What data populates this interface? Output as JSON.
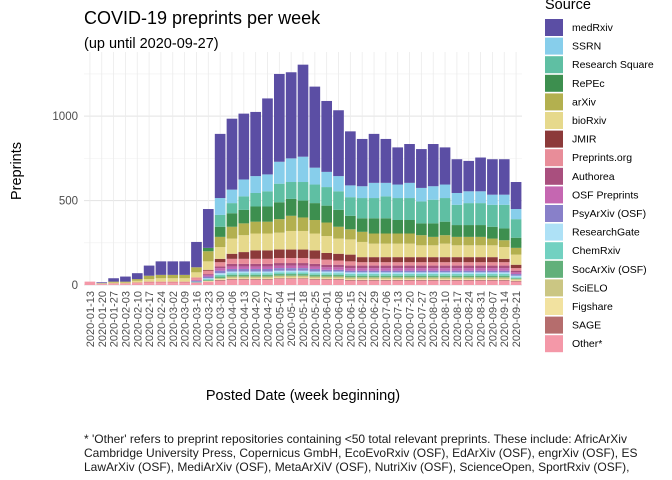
{
  "chart_data": {
    "type": "bar",
    "stacked": true,
    "title": "COVID-19 preprints per week",
    "subtitle": "(up until 2020-09-27)",
    "xlabel": "Posted Date (week beginning)",
    "ylabel": "Preprints",
    "ylim": [
      0,
      1380
    ],
    "yticks": [
      0,
      500,
      1000
    ],
    "grid": true,
    "legend_title": "Source",
    "legend_position": "right",
    "categories": [
      "2020-01-13",
      "2020-01-20",
      "2020-01-27",
      "2020-02-03",
      "2020-02-10",
      "2020-02-17",
      "2020-02-24",
      "2020-03-02",
      "2020-03-09",
      "2020-03-16",
      "2020-03-23",
      "2020-03-30",
      "2020-04-06",
      "2020-04-13",
      "2020-04-20",
      "2020-04-27",
      "2020-05-04",
      "2020-05-11",
      "2020-05-18",
      "2020-05-25",
      "2020-06-01",
      "2020-06-08",
      "2020-06-15",
      "2020-06-22",
      "2020-06-29",
      "2020-07-06",
      "2020-07-13",
      "2020-07-20",
      "2020-07-27",
      "2020-08-03",
      "2020-08-10",
      "2020-08-17",
      "2020-08-24",
      "2020-08-31",
      "2020-09-07",
      "2020-09-14",
      "2020-09-21"
    ],
    "xtick_labels": [
      "2020-01-13",
      "2020-01-20",
      "2020-01-27",
      "2020-02-03",
      "2020-02-10",
      "2020-02-17",
      "2020-02-24",
      "2020-03-02",
      "2020-03-09",
      "2020-03-16",
      "2020-03-23",
      "2020-03-30",
      "2020-04-06",
      "2020-04-13",
      "2020-04-20",
      "2020-04-27",
      "2020-05-04",
      "2020-05-11",
      "2020-05-18",
      "2020-05-25",
      "2020-06-01",
      "2020-06-08",
      "2020-06-15",
      "2020-06-22",
      "2020-06-29",
      "2020-07-06",
      "2020-07-13",
      "2020-07-20",
      "2020-07-27",
      "2020-08-03",
      "2020-08-10",
      "2020-08-17",
      "2020-08-24",
      "2020-08-31",
      "2020-09-07",
      "2020-09-14",
      "2020-09-21"
    ],
    "series": [
      {
        "name": "medRxiv",
        "color": "#5b4ea4",
        "values": [
          0,
          5,
          20,
          30,
          35,
          60,
          80,
          80,
          80,
          150,
          230,
          380,
          420,
          390,
          380,
          450,
          520,
          510,
          545,
          480,
          420,
          390,
          320,
          280,
          290,
          260,
          220,
          230,
          230,
          250,
          220,
          200,
          180,
          200,
          210,
          210,
          160
        ]
      },
      {
        "name": "SSRN",
        "color": "#87ceeb",
        "values": [
          0,
          0,
          0,
          0,
          0,
          0,
          0,
          0,
          0,
          0,
          0,
          100,
          80,
          100,
          100,
          100,
          130,
          140,
          150,
          100,
          90,
          90,
          70,
          70,
          90,
          80,
          80,
          90,
          80,
          80,
          80,
          70,
          70,
          70,
          60,
          60,
          60
        ]
      },
      {
        "name": "Research Square",
        "color": "#5fbfa3",
        "values": [
          0,
          0,
          0,
          0,
          0,
          0,
          0,
          0,
          0,
          0,
          0,
          70,
          60,
          80,
          80,
          90,
          110,
          100,
          110,
          110,
          110,
          110,
          110,
          120,
          120,
          130,
          130,
          130,
          130,
          140,
          140,
          120,
          130,
          130,
          130,
          140,
          110
        ]
      },
      {
        "name": "RePEc",
        "color": "#3d8f4f",
        "values": [
          0,
          0,
          0,
          0,
          0,
          0,
          0,
          0,
          0,
          0,
          20,
          60,
          80,
          80,
          90,
          90,
          100,
          100,
          100,
          100,
          100,
          100,
          80,
          80,
          90,
          90,
          80,
          80,
          70,
          80,
          80,
          70,
          70,
          70,
          70,
          70,
          60
        ]
      },
      {
        "name": "arXiv",
        "color": "#b3b04f",
        "values": [
          0,
          2,
          5,
          5,
          10,
          20,
          20,
          20,
          20,
          30,
          60,
          60,
          70,
          70,
          70,
          70,
          80,
          90,
          80,
          80,
          80,
          70,
          60,
          60,
          60,
          60,
          60,
          60,
          60,
          50,
          50,
          50,
          50,
          50,
          40,
          40,
          40
        ]
      },
      {
        "name": "bioRxiv",
        "color": "#e6d98c",
        "values": [
          0,
          2,
          5,
          5,
          10,
          15,
          20,
          20,
          20,
          30,
          50,
          70,
          90,
          100,
          100,
          100,
          100,
          110,
          110,
          100,
          100,
          90,
          90,
          90,
          80,
          80,
          80,
          80,
          70,
          70,
          80,
          70,
          70,
          70,
          70,
          70,
          60
        ]
      },
      {
        "name": "JMIR",
        "color": "#8c3a3a",
        "values": [
          0,
          0,
          0,
          0,
          0,
          0,
          0,
          0,
          0,
          0,
          5,
          20,
          30,
          40,
          50,
          50,
          50,
          50,
          50,
          50,
          40,
          40,
          40,
          30,
          30,
          30,
          30,
          30,
          30,
          30,
          30,
          30,
          30,
          30,
          30,
          20,
          20
        ]
      },
      {
        "name": "Preprints.org",
        "color": "#e88d99",
        "values": [
          0,
          2,
          5,
          5,
          5,
          10,
          10,
          10,
          10,
          15,
          20,
          25,
          30,
          30,
          30,
          30,
          30,
          30,
          30,
          30,
          30,
          25,
          25,
          20,
          20,
          20,
          20,
          20,
          20,
          20,
          20,
          20,
          20,
          20,
          20,
          20,
          15
        ]
      },
      {
        "name": "Authorea",
        "color": "#a94f7e",
        "values": [
          0,
          0,
          0,
          0,
          0,
          0,
          0,
          0,
          0,
          0,
          5,
          10,
          15,
          15,
          15,
          15,
          15,
          15,
          15,
          15,
          15,
          15,
          15,
          15,
          15,
          15,
          15,
          15,
          15,
          15,
          15,
          15,
          15,
          15,
          15,
          15,
          10
        ]
      },
      {
        "name": "OSF Preprints",
        "color": "#c567b1",
        "values": [
          0,
          0,
          0,
          0,
          0,
          0,
          0,
          0,
          0,
          5,
          10,
          15,
          15,
          15,
          15,
          15,
          15,
          15,
          15,
          15,
          15,
          15,
          15,
          15,
          15,
          15,
          15,
          15,
          15,
          15,
          15,
          15,
          15,
          15,
          15,
          15,
          10
        ]
      },
      {
        "name": "PsyArXiv (OSF)",
        "color": "#8880c9",
        "values": [
          0,
          0,
          0,
          0,
          0,
          0,
          0,
          0,
          0,
          5,
          10,
          15,
          15,
          15,
          15,
          15,
          15,
          15,
          15,
          15,
          10,
          10,
          10,
          10,
          10,
          10,
          10,
          10,
          10,
          10,
          10,
          10,
          10,
          10,
          10,
          10,
          10
        ]
      },
      {
        "name": "ResearchGate",
        "color": "#aee1f6",
        "values": [
          0,
          0,
          0,
          0,
          0,
          0,
          0,
          0,
          0,
          0,
          5,
          10,
          10,
          10,
          10,
          10,
          10,
          10,
          10,
          10,
          10,
          10,
          10,
          10,
          10,
          10,
          10,
          10,
          10,
          10,
          10,
          10,
          10,
          10,
          10,
          10,
          10
        ]
      },
      {
        "name": "ChemRxiv",
        "color": "#72d1c1",
        "values": [
          0,
          0,
          0,
          0,
          0,
          0,
          0,
          0,
          0,
          5,
          5,
          10,
          10,
          10,
          10,
          10,
          10,
          10,
          10,
          10,
          10,
          10,
          10,
          10,
          10,
          10,
          10,
          10,
          10,
          10,
          10,
          10,
          10,
          10,
          10,
          10,
          5
        ]
      },
      {
        "name": "SocArXiv (OSF)",
        "color": "#62b07a",
        "values": [
          0,
          0,
          0,
          0,
          0,
          0,
          0,
          0,
          0,
          0,
          5,
          10,
          10,
          10,
          10,
          10,
          10,
          10,
          10,
          10,
          10,
          10,
          10,
          10,
          10,
          10,
          10,
          10,
          10,
          10,
          10,
          10,
          10,
          10,
          10,
          10,
          5
        ]
      },
      {
        "name": "SciELO",
        "color": "#cbc683",
        "values": [
          0,
          0,
          0,
          0,
          0,
          0,
          0,
          0,
          0,
          0,
          0,
          5,
          10,
          10,
          10,
          10,
          10,
          10,
          10,
          10,
          10,
          10,
          10,
          10,
          10,
          10,
          10,
          10,
          10,
          10,
          10,
          10,
          10,
          10,
          10,
          10,
          5
        ]
      },
      {
        "name": "Figshare",
        "color": "#f2e2a0",
        "values": [
          0,
          0,
          0,
          0,
          0,
          0,
          0,
          0,
          0,
          0,
          5,
          5,
          5,
          5,
          5,
          5,
          5,
          5,
          5,
          5,
          5,
          5,
          5,
          5,
          5,
          5,
          5,
          5,
          5,
          5,
          5,
          5,
          5,
          5,
          5,
          5,
          5
        ]
      },
      {
        "name": "SAGE",
        "color": "#b56d6d",
        "values": [
          0,
          0,
          0,
          0,
          0,
          0,
          0,
          0,
          0,
          0,
          0,
          5,
          5,
          5,
          5,
          5,
          5,
          5,
          5,
          5,
          5,
          5,
          5,
          5,
          5,
          5,
          5,
          5,
          5,
          5,
          5,
          5,
          5,
          5,
          5,
          5,
          5
        ]
      },
      {
        "name": "Other*",
        "color": "#f498a8",
        "values": [
          20,
          5,
          5,
          5,
          10,
          10,
          10,
          10,
          10,
          15,
          20,
          25,
          30,
          30,
          30,
          30,
          35,
          35,
          35,
          30,
          30,
          30,
          25,
          25,
          25,
          25,
          25,
          25,
          25,
          25,
          25,
          25,
          25,
          25,
          25,
          25,
          20
        ]
      }
    ],
    "caption": [
      "* 'Other' refers to preprint repositories containing <50 total relevant preprints. These include: AfricArXiv",
      "Cambridge University Press, Copernicus GmbH, EcoEvoRxiv (OSF), EdArXiv (OSF), engrXiv (OSF), ES",
      "LawArXiv (OSF), MediArXiv (OSF), MetaArXiV (OSF), NutriXiv (OSF), ScienceOpen, SportRxiv (OSF),"
    ]
  }
}
